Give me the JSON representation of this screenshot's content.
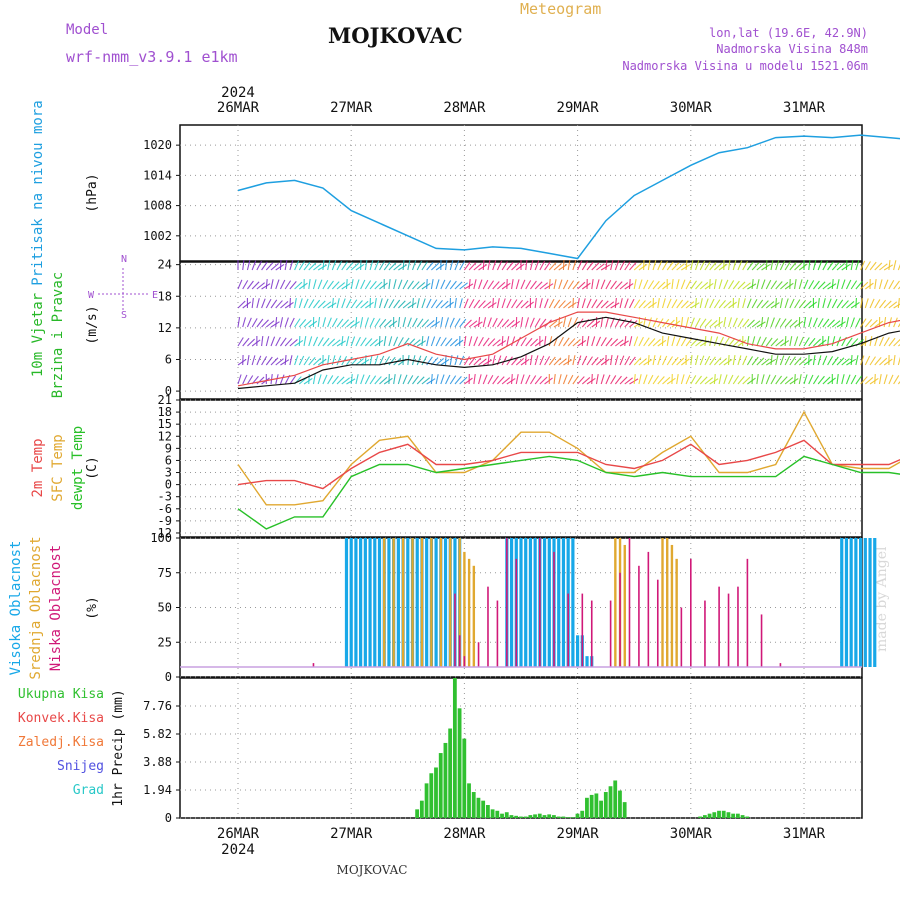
{
  "header": {
    "model_label": "Model",
    "model_name": "wrf-nmm_v3.9.1 e1km",
    "location": "MOJKOVAC",
    "meteogram": "Meteogram",
    "lonlat": "lon,lat (19.6E, 42.9N)",
    "altitude": "Nadmorska Visina 848m",
    "altitude_model": "Nadmorska Visina u modelu 1521.06m",
    "year": "2024",
    "footer_location": "MOJKOVAC",
    "watermark": "made by Angel"
  },
  "colors": {
    "pressure": "#1e9fe0",
    "temp2m": "#e84848",
    "sfc": "#e0a830",
    "dewpt": "#28c028",
    "cloud_high": "#18a8e8",
    "cloud_mid": "#e0a830",
    "cloud_low": "#d01878",
    "precip": "#30c030",
    "grid": "#999999"
  },
  "chart_data": [
    {
      "type": "line",
      "panel": "pressure",
      "ylabel_main": "Pritisak na nivou mora",
      "unit": "(hPa)",
      "x_days": [
        "26MAR",
        "27MAR",
        "28MAR",
        "29MAR",
        "30MAR",
        "31MAR"
      ],
      "yticks": [
        1002,
        1008,
        1014,
        1020
      ],
      "ylim": [
        997,
        1024
      ],
      "series": [
        {
          "x": [
            0,
            6,
            12,
            18,
            24,
            30,
            36,
            42,
            48,
            54,
            60,
            66,
            72,
            78,
            84,
            90,
            96,
            102,
            108,
            114,
            120,
            126,
            132,
            138,
            144,
            150,
            156,
            162,
            168,
            174,
            180
          ],
          "values": [
            1011,
            1012.5,
            1013,
            1011.5,
            1007,
            1004.5,
            1002,
            999.5,
            999.2,
            999.8,
            999.5,
            998.5,
            997.5,
            1005,
            1010,
            1013,
            1016,
            1018.5,
            1019.5,
            1021.5,
            1021.8,
            1021.5,
            1022,
            1021.5,
            1021,
            1020,
            1020.5,
            1020.5,
            1020.5,
            1020.5,
            1020.5
          ]
        }
      ]
    },
    {
      "type": "line",
      "panel": "wind",
      "ylabel_main": "10m Vjetar",
      "ylabel_sub": "Brzina i Pravac",
      "unit": "(m/s)",
      "compass": {
        "n": "N",
        "s": "S",
        "w": "W",
        "e": "E"
      },
      "yticks": [
        0,
        6,
        12,
        18,
        24
      ],
      "ylim": [
        -1.5,
        24.5
      ],
      "series": [
        {
          "name": "speed",
          "x": [
            0,
            6,
            12,
            18,
            24,
            30,
            36,
            42,
            48,
            54,
            60,
            66,
            72,
            78,
            84,
            90,
            96,
            102,
            108,
            114,
            120,
            126,
            132,
            138,
            144,
            150,
            156,
            162,
            168,
            174,
            180
          ],
          "values": [
            0.5,
            1,
            1.5,
            4,
            5,
            5,
            6,
            5,
            4.5,
            5,
            6.5,
            9,
            13,
            14,
            13,
            11,
            10,
            9,
            8,
            7,
            7,
            7.5,
            9,
            11,
            12,
            12,
            11.5,
            11,
            11,
            11,
            10.5
          ]
        },
        {
          "name": "gust",
          "x": [
            0,
            6,
            12,
            18,
            24,
            30,
            36,
            42,
            48,
            54,
            60,
            66,
            72,
            78,
            84,
            90,
            96,
            102,
            108,
            114,
            120,
            126,
            132,
            138,
            144,
            150,
            156,
            162,
            168,
            174,
            180
          ],
          "values": [
            1,
            2,
            3,
            5,
            6,
            7,
            9,
            7,
            6,
            7,
            10,
            13,
            15,
            15,
            14,
            13,
            12,
            11,
            9,
            8,
            8,
            9,
            11,
            13,
            14,
            13,
            13,
            12,
            12,
            12,
            11
          ]
        }
      ]
    },
    {
      "type": "line",
      "panel": "temperature",
      "ylabel_lines": [
        "2m Temp",
        "SFC Temp",
        "dewpt Temp"
      ],
      "unit": "(C)",
      "yticks": [
        -12,
        -9,
        -6,
        -3,
        0,
        3,
        6,
        9,
        12,
        15,
        18,
        21
      ],
      "ylim": [
        -13,
        21
      ],
      "series": [
        {
          "name": "2m Temp",
          "x": [
            0,
            6,
            12,
            18,
            24,
            30,
            36,
            42,
            48,
            54,
            60,
            66,
            72,
            78,
            84,
            90,
            96,
            102,
            108,
            114,
            120,
            126,
            132,
            138,
            144,
            150,
            156,
            162,
            168,
            174,
            180
          ],
          "values": [
            0,
            1,
            1,
            -1,
            4,
            8,
            10,
            5,
            5,
            6,
            8,
            8,
            8,
            5,
            4,
            6,
            10,
            5,
            6,
            8,
            11,
            5,
            5,
            5,
            8,
            11,
            5,
            5,
            5,
            6,
            11
          ]
        },
        {
          "name": "SFC Temp",
          "x": [
            0,
            6,
            12,
            18,
            24,
            30,
            36,
            42,
            48,
            54,
            60,
            66,
            72,
            78,
            84,
            90,
            96,
            102,
            108,
            114,
            120,
            126,
            132,
            138,
            144,
            150,
            156,
            162,
            168,
            174,
            180
          ],
          "values": [
            5,
            -5,
            -5,
            -4,
            5,
            11,
            12,
            3,
            3,
            6,
            13,
            13,
            9,
            3,
            3,
            8,
            12,
            3,
            3,
            5,
            18,
            5,
            4,
            4,
            8,
            18,
            5,
            5,
            5,
            6,
            18
          ]
        },
        {
          "name": "dewpt Temp",
          "x": [
            0,
            6,
            12,
            18,
            24,
            30,
            36,
            42,
            48,
            54,
            60,
            66,
            72,
            78,
            84,
            90,
            96,
            102,
            108,
            114,
            120,
            126,
            132,
            138,
            144,
            150,
            156,
            162,
            168,
            174,
            180
          ],
          "values": [
            -6,
            -11,
            -8,
            -8,
            2,
            5,
            5,
            3,
            4,
            5,
            6,
            7,
            6,
            3,
            2,
            3,
            2,
            2,
            2,
            2,
            7,
            5,
            3,
            3,
            2,
            3,
            3,
            -3,
            0,
            0,
            2
          ]
        }
      ]
    },
    {
      "type": "bar",
      "panel": "clouds",
      "ylabel_lines": [
        "Visoka Oblacnost",
        "Srednja Oblacnost",
        "Niska Oblacnost"
      ],
      "unit": "(%)",
      "yticks": [
        0,
        25,
        50,
        75,
        100
      ],
      "ylim": [
        0,
        100
      ],
      "series": [
        {
          "name": "Visoka Oblacnost",
          "x": [
            23,
            24,
            25,
            26,
            27,
            28,
            29,
            30,
            31,
            32,
            33,
            34,
            35,
            36,
            37,
            38,
            39,
            40,
            41,
            42,
            43,
            44,
            45,
            46,
            47,
            57,
            58,
            59,
            60,
            61,
            62,
            63,
            64,
            65,
            66,
            67,
            68,
            69,
            70,
            71,
            72,
            73,
            74,
            75,
            128,
            129,
            130,
            131,
            132,
            133,
            134,
            135,
            179
          ],
          "values": [
            100,
            100,
            100,
            100,
            100,
            100,
            100,
            100,
            100,
            100,
            100,
            100,
            100,
            100,
            100,
            100,
            100,
            100,
            100,
            100,
            100,
            100,
            100,
            100,
            100,
            100,
            100,
            100,
            100,
            100,
            100,
            100,
            100,
            100,
            100,
            100,
            100,
            100,
            100,
            100,
            30,
            30,
            15,
            15,
            100,
            100,
            100,
            100,
            100,
            100,
            100,
            100,
            100
          ]
        },
        {
          "name": "Srednja Oblacnost",
          "x": [
            31,
            33,
            35,
            37,
            39,
            41,
            43,
            45,
            47,
            48,
            49,
            50,
            80,
            81,
            82,
            90,
            91,
            92,
            93
          ],
          "values": [
            100,
            100,
            100,
            100,
            100,
            100,
            100,
            100,
            100,
            90,
            85,
            80,
            100,
            100,
            95,
            100,
            100,
            95,
            85
          ]
        },
        {
          "name": "Niska Oblacnost",
          "x": [
            16,
            46,
            47,
            48,
            51,
            53,
            55,
            57,
            59,
            64,
            67,
            70,
            73,
            75,
            79,
            81,
            83,
            85,
            87,
            89,
            94,
            96,
            99,
            102,
            104,
            106,
            108,
            111,
            115,
            119,
            148,
            150
          ],
          "values": [
            10,
            60,
            30,
            15,
            25,
            65,
            55,
            100,
            85,
            100,
            90,
            60,
            60,
            55,
            55,
            75,
            100,
            80,
            90,
            70,
            50,
            85,
            55,
            65,
            60,
            65,
            85,
            45,
            10,
            5,
            5,
            5
          ]
        }
      ]
    },
    {
      "type": "bar",
      "panel": "precip",
      "ylabel_lines": [
        "Ukupna Kisa",
        "Konvek.Kisa",
        "Zaledj.Kisa",
        "Snijeg",
        "Grad"
      ],
      "unit": "1hr Precip (mm)",
      "yticks": [
        0,
        1.94,
        3.88,
        5.82,
        7.76
      ],
      "ylim": [
        0,
        9.7
      ],
      "series": [
        {
          "name": "Ukupna Kisa",
          "x": [
            38,
            39,
            40,
            41,
            42,
            43,
            44,
            45,
            46,
            47,
            48,
            49,
            50,
            51,
            52,
            53,
            54,
            55,
            56,
            57,
            58,
            59,
            60,
            61,
            62,
            63,
            64,
            65,
            66,
            67,
            68,
            69,
            70,
            71,
            72,
            73,
            74,
            75,
            76,
            77,
            78,
            79,
            80,
            81,
            82,
            98,
            99,
            100,
            101,
            102,
            103,
            104,
            105,
            106,
            107,
            108
          ],
          "values": [
            0.6,
            1.2,
            2.4,
            3.1,
            3.5,
            4.5,
            5.2,
            6.2,
            9.7,
            7.6,
            5.5,
            2.4,
            1.8,
            1.4,
            1.2,
            0.9,
            0.6,
            0.5,
            0.3,
            0.4,
            0.2,
            0.15,
            0.1,
            0.1,
            0.2,
            0.25,
            0.3,
            0.2,
            0.25,
            0.2,
            0.1,
            0.1,
            0.05,
            0.05,
            0.3,
            0.5,
            1.4,
            1.6,
            1.7,
            1.2,
            1.8,
            2.2,
            2.6,
            1.9,
            1.1,
            0.1,
            0.2,
            0.3,
            0.4,
            0.5,
            0.5,
            0.4,
            0.3,
            0.3,
            0.2,
            0.1
          ]
        }
      ]
    }
  ]
}
